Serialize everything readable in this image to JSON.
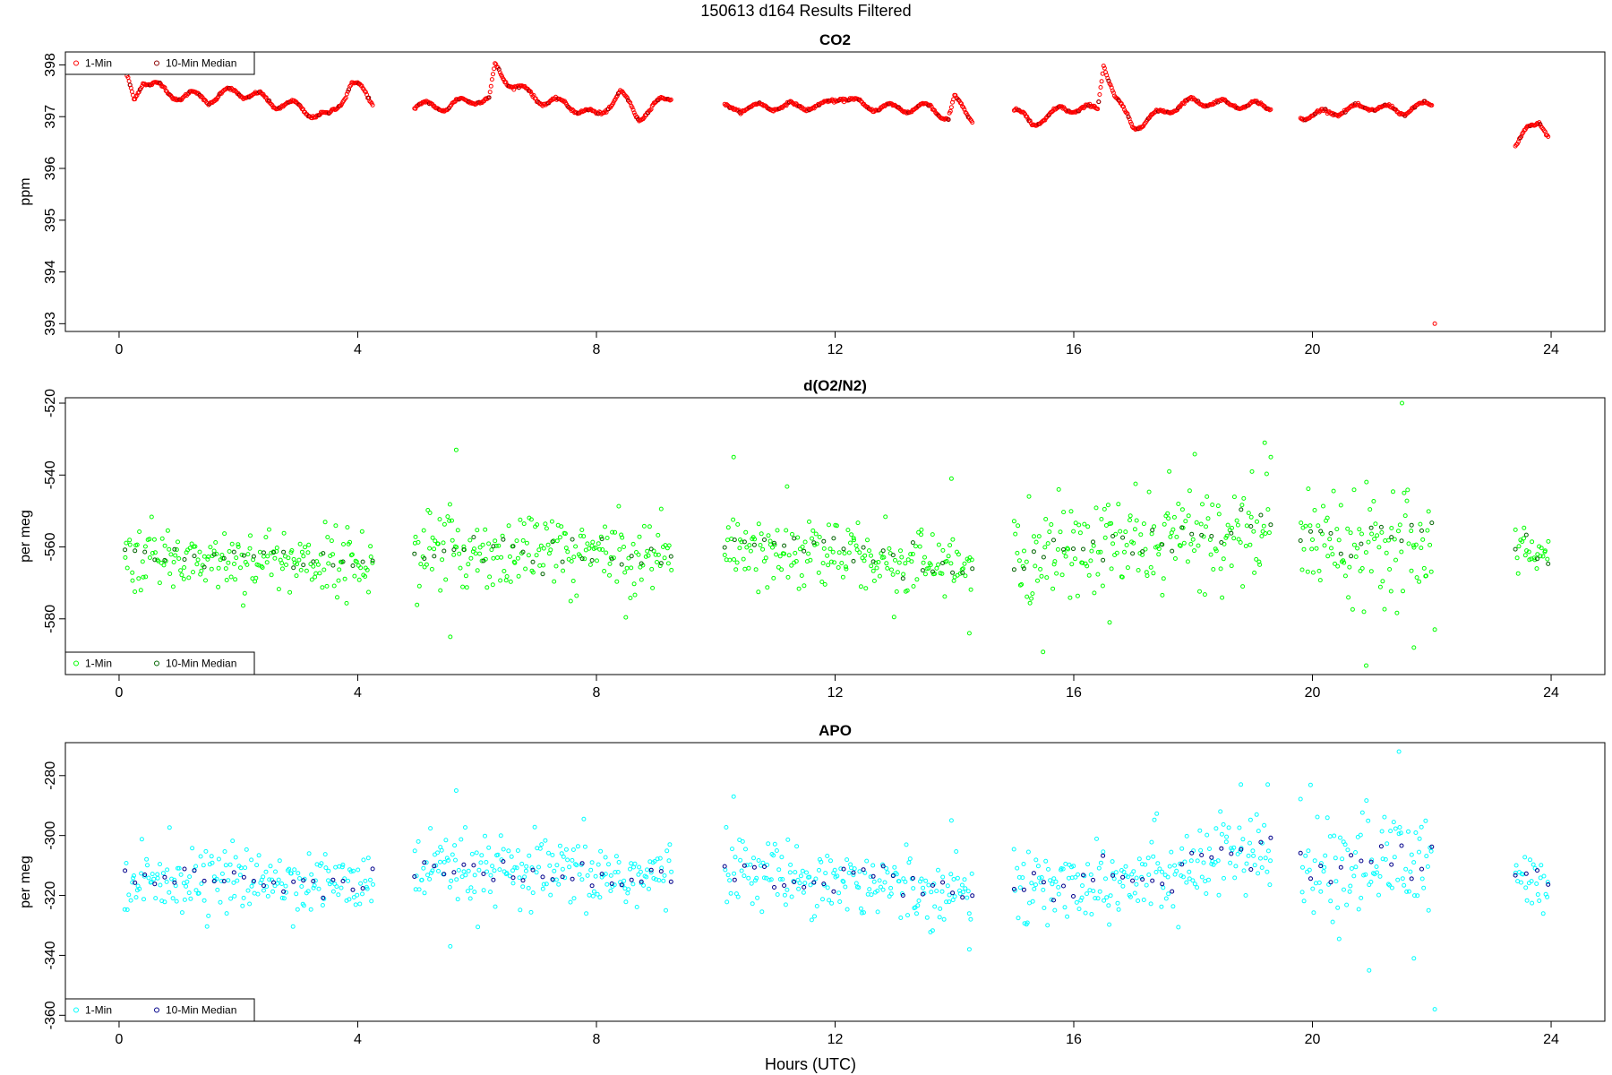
{
  "page": {
    "title": "150613   d164   Results Filtered",
    "xlabel": "Hours (UTC)"
  },
  "chart_data": [
    {
      "type": "scatter",
      "title": "CO2",
      "ylabel": "ppm",
      "xlim": [
        -0.9,
        24.9
      ],
      "ylim": [
        392.85,
        398.25
      ],
      "xticks": [
        0,
        4,
        8,
        12,
        16,
        20,
        24
      ],
      "yticks": [
        393,
        394,
        395,
        396,
        397,
        398
      ],
      "legend": {
        "position": "top-left",
        "entries": [
          "1-Min",
          "10-Min Median"
        ]
      },
      "colors": {
        "one_min": "#ff0000",
        "median": "#8b0000"
      },
      "segments": [
        {
          "x0": 0.1,
          "x1": 4.25,
          "base": 397.3,
          "amp": 0.18,
          "points": [
            [
              0.1,
              397.8
            ],
            [
              0.25,
              397.3
            ],
            [
              0.4,
              397.75
            ],
            [
              0.8,
              397.45
            ],
            [
              1.5,
              397.35
            ],
            [
              2.0,
              397.5
            ],
            [
              2.5,
              397.3
            ],
            [
              3.1,
              397.15
            ],
            [
              3.5,
              396.95
            ],
            [
              3.9,
              397.65
            ],
            [
              4.25,
              397.3
            ]
          ]
        },
        {
          "x0": 4.95,
          "x1": 9.25,
          "base": 397.2,
          "amp": 0.15,
          "points": [
            [
              4.95,
              397.2
            ],
            [
              5.5,
              397.2
            ],
            [
              6.0,
              397.35
            ],
            [
              6.2,
              397.3
            ],
            [
              6.3,
              397.95
            ],
            [
              6.5,
              397.7
            ],
            [
              7.0,
              397.35
            ],
            [
              7.6,
              397.2
            ],
            [
              8.0,
              397.0
            ],
            [
              8.4,
              397.45
            ],
            [
              8.7,
              397.0
            ],
            [
              9.25,
              397.4
            ]
          ]
        },
        {
          "x0": 10.15,
          "x1": 14.3,
          "base": 397.2,
          "amp": 0.12,
          "points": [
            [
              10.15,
              397.15
            ],
            [
              11.0,
              397.2
            ],
            [
              11.8,
              397.2
            ],
            [
              12.1,
              397.4
            ],
            [
              12.5,
              397.2
            ],
            [
              13.3,
              397.15
            ],
            [
              13.6,
              397.2
            ],
            [
              13.9,
              396.95
            ],
            [
              14.0,
              397.35
            ],
            [
              14.3,
              396.95
            ]
          ]
        },
        {
          "x0": 15.0,
          "x1": 19.3,
          "base": 397.1,
          "amp": 0.12,
          "points": [
            [
              15.0,
              397.15
            ],
            [
              15.3,
              396.85
            ],
            [
              15.8,
              397.15
            ],
            [
              16.4,
              397.15
            ],
            [
              16.5,
              398.05
            ],
            [
              16.7,
              397.35
            ],
            [
              17.0,
              396.8
            ],
            [
              17.5,
              397.1
            ],
            [
              18.0,
              397.3
            ],
            [
              18.5,
              397.25
            ],
            [
              19.3,
              397.2
            ]
          ]
        },
        {
          "x0": 19.8,
          "x1": 22.0,
          "base": 397.1,
          "amp": 0.12,
          "points": [
            [
              19.8,
              397.0
            ],
            [
              20.4,
              397.1
            ],
            [
              21.0,
              397.2
            ],
            [
              21.5,
              397.1
            ],
            [
              22.0,
              397.25
            ]
          ]
        },
        {
          "x0": 23.4,
          "x1": 23.95,
          "base": 396.8,
          "amp": 0.05,
          "points": [
            [
              23.4,
              396.4
            ],
            [
              23.6,
              396.8
            ],
            [
              23.8,
              396.9
            ],
            [
              23.95,
              396.6
            ]
          ]
        }
      ],
      "outliers": [
        [
          22.05,
          393.0
        ]
      ]
    },
    {
      "type": "scatter",
      "title": "d(O2/N2)",
      "ylabel": "per meg",
      "xlim": [
        -0.9,
        24.9
      ],
      "ylim": [
        -595.5,
        -518.5
      ],
      "xticks": [
        0,
        4,
        8,
        12,
        16,
        20,
        24
      ],
      "yticks": [
        -580,
        -560,
        -540,
        -520
      ],
      "legend": {
        "position": "bottom-left",
        "entries": [
          "1-Min",
          "10-Min Median"
        ]
      },
      "colors": {
        "one_min": "#00ff00",
        "median": "#006400"
      },
      "segments": [
        {
          "x0": 0.1,
          "x1": 4.25,
          "y0": -563,
          "y1": -564,
          "sd": 4.5
        },
        {
          "x0": 4.95,
          "x1": 9.25,
          "y0": -561,
          "y1": -562,
          "sd": 5.5
        },
        {
          "x0": 10.15,
          "x1": 14.3,
          "y0": -559,
          "y1": -566,
          "sd": 5
        },
        {
          "x0": 15.0,
          "x1": 19.3,
          "y0": -564,
          "y1": -554,
          "sd": 7
        },
        {
          "x0": 19.8,
          "x1": 22.0,
          "y0": -558,
          "y1": -557,
          "sd": 8
        },
        {
          "x0": 23.4,
          "x1": 23.95,
          "y0": -560,
          "y1": -564,
          "sd": 3.5
        }
      ],
      "outliers": [
        [
          5.65,
          -533
        ],
        [
          5.55,
          -585
        ],
        [
          10.3,
          -535
        ],
        [
          13.95,
          -541
        ],
        [
          14.25,
          -584
        ],
        [
          17.6,
          -539
        ],
        [
          19.2,
          -531
        ],
        [
          21.5,
          -520
        ],
        [
          20.9,
          -593
        ],
        [
          21.7,
          -588
        ],
        [
          22.05,
          -583
        ],
        [
          16.6,
          -581
        ]
      ]
    },
    {
      "type": "scatter",
      "title": "APO",
      "ylabel": "per meg",
      "xlim": [
        -0.9,
        24.9
      ],
      "ylim": [
        -362,
        -269
      ],
      "xticks": [
        0,
        4,
        8,
        12,
        16,
        20,
        24
      ],
      "yticks": [
        -360,
        -340,
        -320,
        -300,
        -280
      ],
      "legend": {
        "position": "bottom-left",
        "entries": [
          "1-Min",
          "10-Min Median"
        ]
      },
      "colors": {
        "one_min": "#00ffff",
        "median": "#00008b"
      },
      "segments": [
        {
          "x0": 0.1,
          "x1": 4.25,
          "y0": -314,
          "y1": -316,
          "sd": 5
        },
        {
          "x0": 4.95,
          "x1": 9.25,
          "y0": -312,
          "y1": -314,
          "sd": 6
        },
        {
          "x0": 10.15,
          "x1": 14.3,
          "y0": -311,
          "y1": -319,
          "sd": 5.5
        },
        {
          "x0": 15.0,
          "x1": 19.3,
          "y0": -318,
          "y1": -306,
          "sd": 7.5
        },
        {
          "x0": 19.8,
          "x1": 22.0,
          "y0": -310,
          "y1": -308,
          "sd": 9
        },
        {
          "x0": 23.4,
          "x1": 23.95,
          "y0": -312,
          "y1": -317,
          "sd": 4
        }
      ],
      "outliers": [
        [
          5.65,
          -285
        ],
        [
          5.55,
          -337
        ],
        [
          10.3,
          -287
        ],
        [
          13.95,
          -295
        ],
        [
          14.25,
          -338
        ],
        [
          19.25,
          -283
        ],
        [
          21.45,
          -272
        ],
        [
          20.95,
          -345
        ],
        [
          21.7,
          -341
        ],
        [
          22.05,
          -358
        ],
        [
          18.8,
          -283
        ]
      ]
    }
  ]
}
